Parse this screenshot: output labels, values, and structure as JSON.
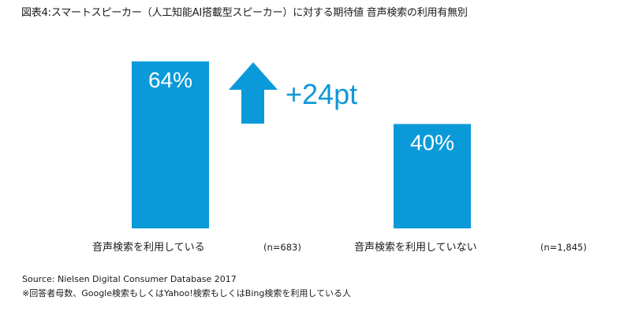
{
  "chart_data": {
    "type": "bar",
    "title": "図表4:スマートスピーカー（人工知能AI搭載型スピーカー）に対する期待値 音声検索の利用有無別",
    "categories": [
      "音声検索を利用している",
      "音声検索を利用していない"
    ],
    "n_labels": [
      "(n=683)",
      "(n=1,845)"
    ],
    "values": [
      64,
      40
    ],
    "value_labels": [
      "64%",
      "40%"
    ],
    "unit": "%",
    "ylim": [
      0,
      100
    ],
    "grid": false,
    "annotation": {
      "text": "+24pt",
      "arrow": "up-arrow-icon"
    },
    "colors": {
      "bar": "#0b9ad9",
      "arrow": "#0b9ad9",
      "annotation_text": "#1097d9"
    }
  },
  "footer": {
    "source": "Source: Nielsen Digital Consumer Database 2017",
    "note": "※回答者母数、Google検索もしくはYahoo!検索もしくはBing検索を利用している人"
  }
}
